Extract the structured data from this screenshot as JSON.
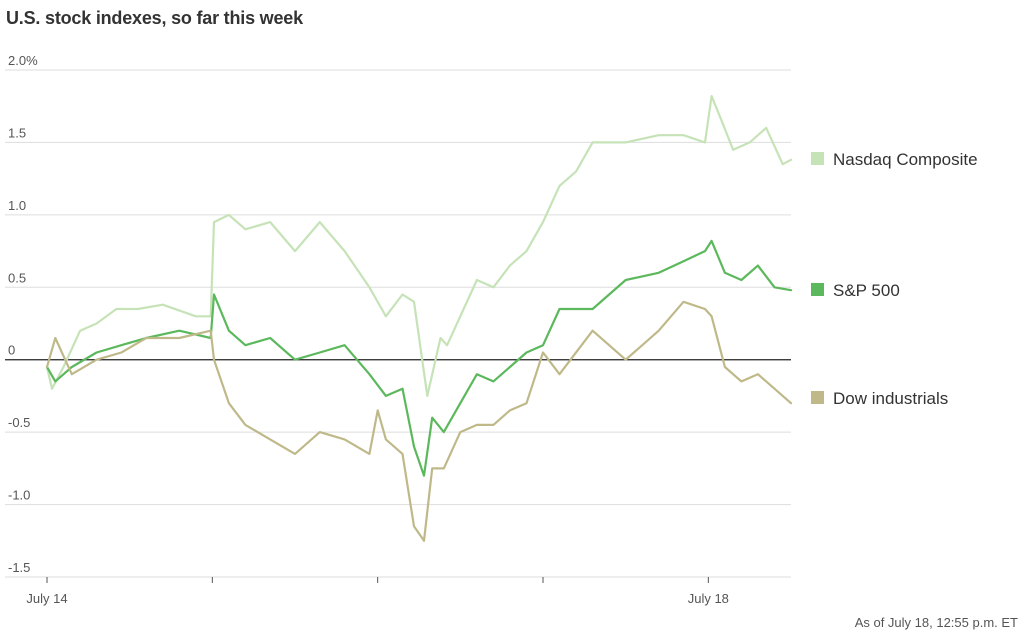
{
  "chart_data": {
    "type": "line",
    "title": "U.S. stock indexes, so far this week",
    "ylabel": "",
    "ylim": [
      -1.5,
      2.0
    ],
    "y_ticks": [
      {
        "value": 2.0,
        "label": "2.0%"
      },
      {
        "value": 1.5,
        "label": "1.5"
      },
      {
        "value": 1.0,
        "label": "1.0"
      },
      {
        "value": 0.5,
        "label": "0.5"
      },
      {
        "value": 0,
        "label": "0"
      },
      {
        "value": -0.5,
        "label": "-0.5"
      },
      {
        "value": -1.0,
        "label": "-1.0"
      },
      {
        "value": -1.5,
        "label": "-1.5"
      }
    ],
    "xlim": [
      0,
      4.5
    ],
    "x_ticks": [
      {
        "value": 0,
        "label": "July 14"
      },
      {
        "value": 1,
        "label": ""
      },
      {
        "value": 2,
        "label": ""
      },
      {
        "value": 3,
        "label": ""
      },
      {
        "value": 4,
        "label": "July 18"
      }
    ],
    "grid": true,
    "legend": "right",
    "footnote": "As of July 18, 12:55 p.m. ET",
    "series": [
      {
        "name": "Nasdaq Composite",
        "color": "#c6e3b8",
        "x": [
          0,
          0.03,
          0.1,
          0.2,
          0.3,
          0.42,
          0.55,
          0.7,
          0.9,
          0.99,
          1.01,
          1.1,
          1.2,
          1.35,
          1.5,
          1.65,
          1.8,
          1.95,
          2.05,
          2.15,
          2.22,
          2.3,
          2.38,
          2.42,
          2.5,
          2.6,
          2.7,
          2.8,
          2.9,
          3.0,
          3.1,
          3.2,
          3.3,
          3.5,
          3.7,
          3.85,
          3.98,
          4.02,
          4.08,
          4.15,
          4.25,
          4.35,
          4.45,
          4.5
        ],
        "y": [
          -0.05,
          -0.2,
          -0.05,
          0.2,
          0.25,
          0.35,
          0.35,
          0.38,
          0.3,
          0.3,
          0.95,
          1.0,
          0.9,
          0.95,
          0.75,
          0.95,
          0.75,
          0.5,
          0.3,
          0.45,
          0.4,
          -0.25,
          0.15,
          0.1,
          0.3,
          0.55,
          0.5,
          0.65,
          0.75,
          0.95,
          1.2,
          1.3,
          1.5,
          1.5,
          1.55,
          1.55,
          1.5,
          1.82,
          1.65,
          1.45,
          1.5,
          1.6,
          1.35,
          1.38
        ]
      },
      {
        "name": "S&P 500",
        "color": "#5cb85c",
        "x": [
          0,
          0.05,
          0.15,
          0.3,
          0.45,
          0.6,
          0.8,
          0.99,
          1.01,
          1.1,
          1.2,
          1.35,
          1.5,
          1.65,
          1.8,
          1.95,
          2.05,
          2.15,
          2.22,
          2.28,
          2.33,
          2.4,
          2.5,
          2.6,
          2.7,
          2.8,
          2.9,
          3.0,
          3.1,
          3.3,
          3.5,
          3.7,
          3.85,
          3.98,
          4.02,
          4.1,
          4.2,
          4.3,
          4.4,
          4.5
        ],
        "y": [
          -0.05,
          -0.15,
          -0.05,
          0.05,
          0.1,
          0.15,
          0.2,
          0.15,
          0.45,
          0.2,
          0.1,
          0.15,
          0.0,
          0.05,
          0.1,
          -0.1,
          -0.25,
          -0.2,
          -0.6,
          -0.8,
          -0.4,
          -0.5,
          -0.3,
          -0.1,
          -0.15,
          -0.05,
          0.05,
          0.1,
          0.35,
          0.35,
          0.55,
          0.6,
          0.68,
          0.75,
          0.82,
          0.6,
          0.55,
          0.65,
          0.5,
          0.48
        ]
      },
      {
        "name": "Dow industrials",
        "color": "#bfb98a",
        "x": [
          0,
          0.05,
          0.15,
          0.3,
          0.45,
          0.6,
          0.8,
          0.99,
          1.01,
          1.1,
          1.2,
          1.35,
          1.5,
          1.65,
          1.8,
          1.95,
          2.0,
          2.05,
          2.15,
          2.22,
          2.28,
          2.33,
          2.4,
          2.5,
          2.6,
          2.7,
          2.8,
          2.9,
          3.0,
          3.1,
          3.3,
          3.5,
          3.7,
          3.85,
          3.98,
          4.02,
          4.1,
          4.2,
          4.3,
          4.4,
          4.5
        ],
        "y": [
          -0.05,
          0.15,
          -0.1,
          0.0,
          0.05,
          0.15,
          0.15,
          0.2,
          0.0,
          -0.3,
          -0.45,
          -0.55,
          -0.65,
          -0.5,
          -0.55,
          -0.65,
          -0.35,
          -0.55,
          -0.65,
          -1.15,
          -1.25,
          -0.75,
          -0.75,
          -0.5,
          -0.45,
          -0.45,
          -0.35,
          -0.3,
          0.05,
          -0.1,
          0.2,
          0.0,
          0.2,
          0.4,
          0.35,
          0.3,
          -0.05,
          -0.15,
          -0.1,
          -0.2,
          -0.3
        ]
      }
    ]
  }
}
